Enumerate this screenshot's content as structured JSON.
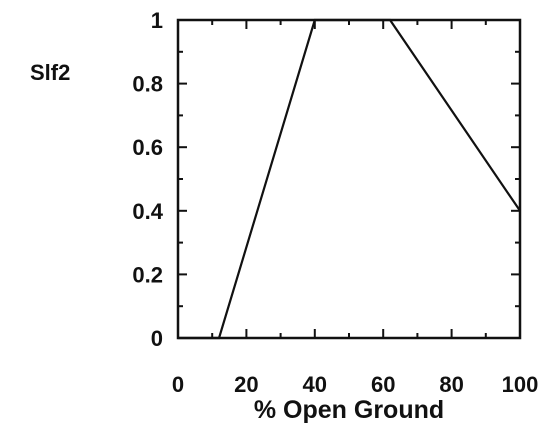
{
  "chart_data": {
    "type": "line",
    "ylabel_side": "Slf2",
    "xlabel": "% Open Ground",
    "xlim": [
      0,
      100
    ],
    "ylim": [
      0,
      1
    ],
    "x_ticks": [
      0,
      20,
      40,
      60,
      80,
      100
    ],
    "y_ticks": [
      0,
      0.2,
      0.4,
      0.6,
      0.8,
      1
    ],
    "x_tick_labels": [
      "0",
      "20",
      "40",
      "60",
      "80",
      "100"
    ],
    "y_tick_labels": [
      "0",
      "0.2",
      "0.4",
      "0.6",
      "0.8",
      "1"
    ],
    "series": [
      {
        "x": [
          0,
          12,
          40,
          62,
          100
        ],
        "y": [
          0,
          0,
          1,
          1,
          0.4
        ]
      }
    ],
    "grid": false,
    "colors": {
      "line": "#111111",
      "axes": "#111111",
      "background": "#ffffff"
    }
  }
}
